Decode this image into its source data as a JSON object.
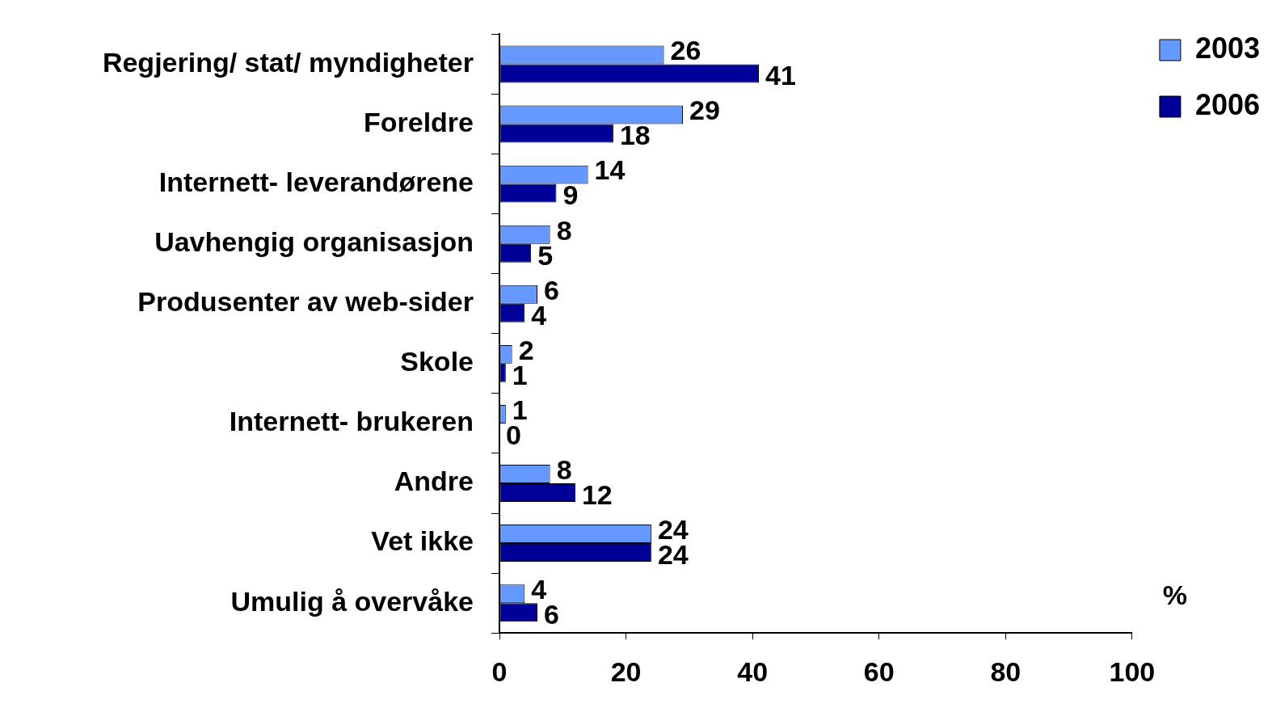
{
  "chart_data": {
    "type": "bar",
    "orientation": "horizontal",
    "xlabel": "%",
    "categories": [
      "Regjering/ stat/ myndigheter",
      "Foreldre",
      "Internett- leverandørene",
      "Uavhengig organisasjon",
      "Produsenter av web-sider",
      "Skole",
      "Internett- brukeren",
      "Andre",
      "Vet ikke",
      "Umulig å overvåke"
    ],
    "series": [
      {
        "name": "2003",
        "color": "#6699ff",
        "values": [
          26,
          29,
          14,
          8,
          6,
          2,
          1,
          8,
          24,
          4
        ]
      },
      {
        "name": "2006",
        "color": "#000099",
        "values": [
          41,
          18,
          9,
          5,
          4,
          1,
          0,
          12,
          24,
          6
        ]
      }
    ],
    "xlim": [
      0,
      100
    ],
    "xticks": [
      0,
      20,
      40,
      60,
      80,
      100
    ],
    "data_labels": true,
    "legend": "top right"
  }
}
